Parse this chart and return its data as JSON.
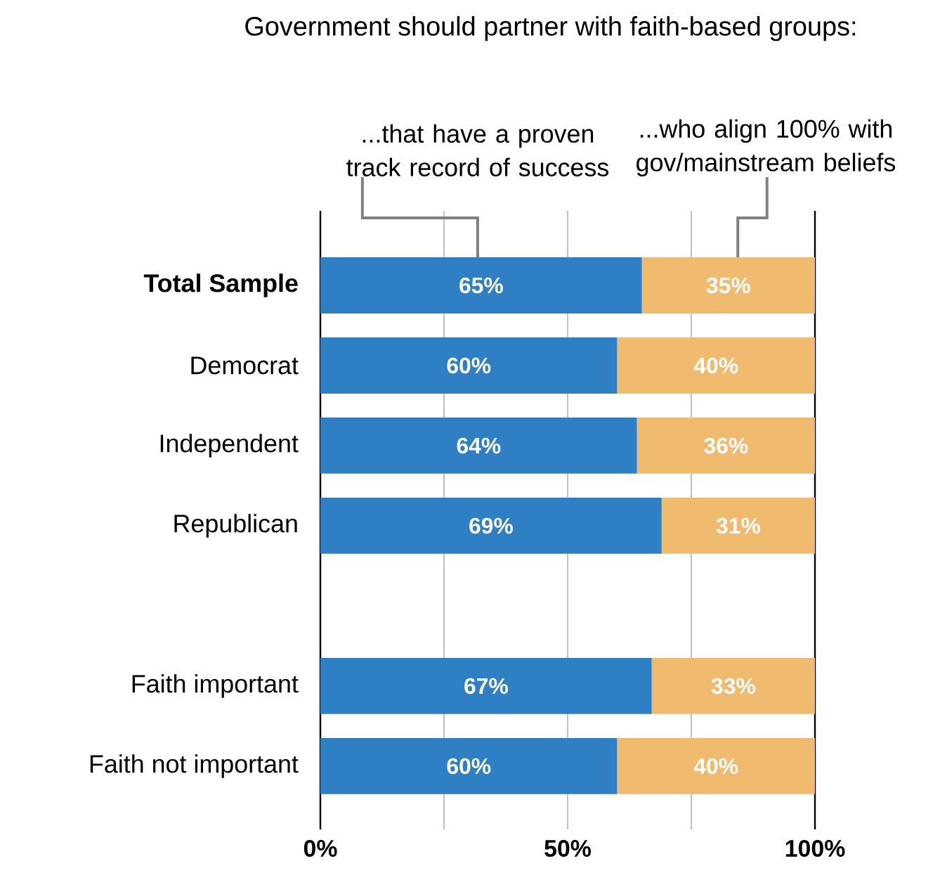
{
  "chart_data": {
    "type": "bar",
    "orientation": "horizontal",
    "stacked": true,
    "title": "Government should partner with faith-based groups:",
    "categories": [
      "Total Sample",
      "Democrat",
      "Independent",
      "Republican",
      null,
      "Faith important",
      "Faith not important"
    ],
    "series": [
      {
        "name": "...that have a proven track record of success",
        "color": "#2e7fc4",
        "values": [
          65,
          60,
          64,
          69,
          null,
          67,
          60
        ],
        "value_labels": [
          "65%",
          "60%",
          "64%",
          "69%",
          null,
          "67%",
          "60%"
        ]
      },
      {
        "name": "...who align 100% with gov/mainstream beliefs",
        "color": "#f0bb6f",
        "values": [
          35,
          40,
          36,
          31,
          null,
          33,
          40
        ],
        "value_labels": [
          "35%",
          "40%",
          "36%",
          "31%",
          null,
          "33%",
          "40%"
        ]
      }
    ],
    "xlim": [
      0,
      100
    ],
    "xticks": [
      {
        "value": 0,
        "label": "0%"
      },
      {
        "value": 25,
        "label": null
      },
      {
        "value": 50,
        "label": "50%"
      },
      {
        "value": 75,
        "label": null
      },
      {
        "value": 100,
        "label": "100%"
      }
    ],
    "grid": "x"
  }
}
